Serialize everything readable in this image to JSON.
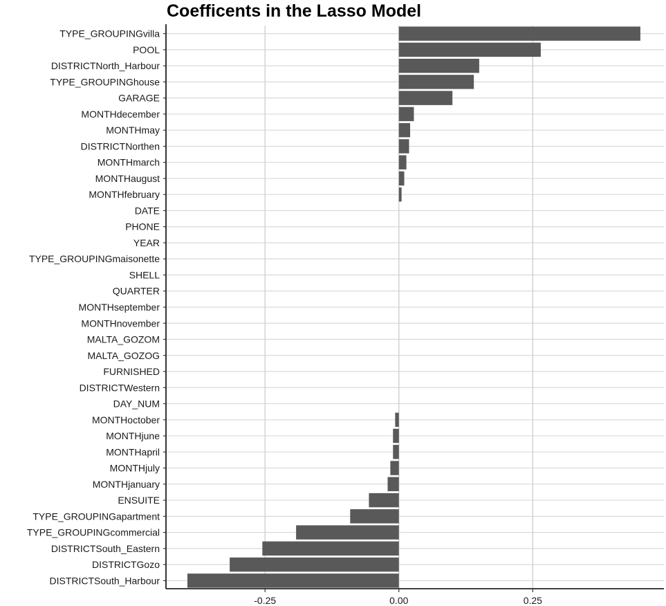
{
  "chart_data": {
    "type": "bar",
    "orientation": "horizontal",
    "title": "Coefficents in the Lasso Model",
    "xlabel": "",
    "ylabel": "",
    "xlim": [
      -0.435,
      0.495
    ],
    "x_ticks": [
      -0.25,
      0.0,
      0.25
    ],
    "x_tick_labels": [
      "-0.25",
      "0.00",
      "0.25"
    ],
    "grid": true,
    "legend": "none",
    "bar_color": "#595959",
    "categories": [
      "TYPE_GROUPINGvilla",
      "POOL",
      "DISTRICTNorth_Harbour",
      "TYPE_GROUPINGhouse",
      "GARAGE",
      "MONTHdecember",
      "MONTHmay",
      "DISTRICTNorthen",
      "MONTHmarch",
      "MONTHaugust",
      "MONTHfebruary",
      "DATE",
      "PHONE",
      "YEAR",
      "TYPE_GROUPINGmaisonette",
      "SHELL",
      "QUARTER",
      "MONTHseptember",
      "MONTHnovember",
      "MALTA_GOZOM",
      "MALTA_GOZOG",
      "FURNISHED",
      "DISTRICTWestern",
      "DAY_NUM",
      "MONTHoctober",
      "MONTHjune",
      "MONTHapril",
      "MONTHjuly",
      "MONTHjanuary",
      "ENSUITE",
      "TYPE_GROUPINGapartment",
      "TYPE_GROUPINGcommercial",
      "DISTRICTSouth_Eastern",
      "DISTRICTGozo",
      "DISTRICTSouth_Harbour"
    ],
    "values": [
      0.451,
      0.265,
      0.15,
      0.14,
      0.1,
      0.028,
      0.021,
      0.019,
      0.014,
      0.01,
      0.005,
      0.0,
      0.0,
      0.0,
      0.0,
      0.0,
      0.0,
      0.0,
      0.0,
      0.0,
      0.0,
      0.0,
      0.0,
      0.0,
      -0.007,
      -0.011,
      -0.011,
      -0.016,
      -0.021,
      -0.056,
      -0.091,
      -0.192,
      -0.255,
      -0.316,
      -0.395
    ]
  }
}
